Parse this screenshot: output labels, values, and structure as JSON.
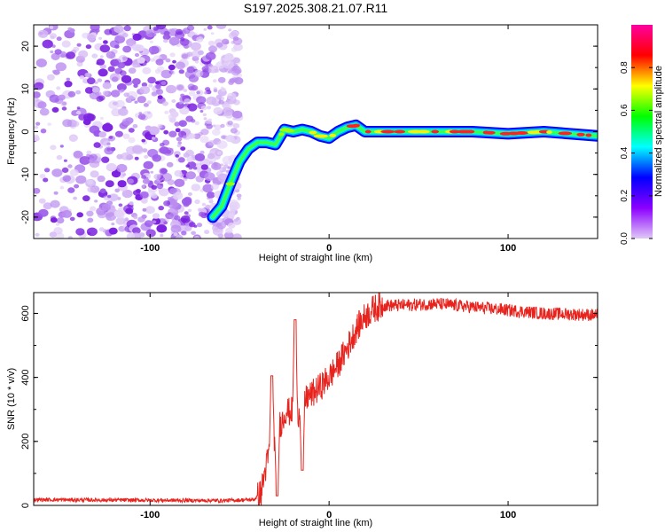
{
  "title": "S197.2025.308.21.07.R11",
  "colors": {
    "snr_line": "#e8231d",
    "scatter": "#8a2be2",
    "axis": "#000000"
  },
  "chart_data": [
    {
      "type": "heatmap",
      "name": "spectrogram",
      "xlabel": "Height of straight line (km)",
      "ylabel": "Frequency (Hz)",
      "xlim": [
        -165,
        150
      ],
      "ylim": [
        -25,
        25
      ],
      "xticks": [
        -100,
        0,
        100
      ],
      "xtick_labels": [
        "-100",
        "0",
        "100"
      ],
      "yticks": [
        -20,
        -10,
        0,
        10,
        20
      ],
      "ytick_labels": [
        "-20",
        "-10",
        "0",
        "10",
        "20"
      ],
      "track": {
        "x": [
          -65,
          -60,
          -55,
          -50,
          -45,
          -40,
          -35,
          -30,
          -25,
          -20,
          -15,
          -10,
          -5,
          0,
          5,
          10,
          15,
          20,
          30,
          40,
          60,
          80,
          100,
          120,
          150
        ],
        "y": [
          -20,
          -17.5,
          -12,
          -7,
          -4,
          -2.5,
          -2.5,
          -3,
          0.5,
          0,
          0.5,
          0,
          -1,
          -1.5,
          0,
          1,
          1.5,
          0,
          0,
          0,
          0,
          0,
          -0.5,
          0,
          -1
        ]
      },
      "noise_region_km": [
        -165,
        -50
      ],
      "colorbar": {
        "label": "Normalized spectral amplitude",
        "range": [
          0,
          1
        ],
        "ticks": [
          0.0,
          0.2,
          0.4,
          0.6,
          0.8
        ],
        "tick_labels": [
          "0.0",
          "0.2",
          "0.4",
          "0.6",
          "0.8"
        ],
        "stops": [
          "#e0c9f7",
          "#8b00ff",
          "#0000ff",
          "#00ffff",
          "#00ff00",
          "#ffff00",
          "#ff0000",
          "#ff00a0"
        ]
      }
    },
    {
      "type": "line",
      "name": "snr",
      "xlabel": "Height of straight line (km)",
      "ylabel": "SNR (10 * v/v)",
      "xlim": [
        -165,
        150
      ],
      "ylim": [
        0,
        665
      ],
      "xticks": [
        -100,
        0,
        100
      ],
      "xtick_labels": [
        "-100",
        "0",
        "100"
      ],
      "yticks": [
        0,
        200,
        400,
        600
      ],
      "ytick_labels": [
        "0",
        "200",
        "400",
        "600"
      ],
      "envelope": {
        "x": [
          -165,
          -60,
          -42,
          -38,
          -36,
          -34,
          -32,
          -30,
          -28,
          -26,
          -24,
          -22,
          -20,
          -18,
          -16,
          -14,
          -12,
          -10,
          -5,
          0,
          5,
          10,
          15,
          20,
          25,
          30,
          40,
          60,
          80,
          100,
          120,
          150
        ],
        "y": [
          18,
          15,
          18,
          40,
          100,
          150,
          200,
          220,
          250,
          265,
          300,
          290,
          300,
          280,
          300,
          320,
          340,
          345,
          370,
          400,
          440,
          490,
          550,
          590,
          615,
          625,
          625,
          630,
          620,
          610,
          600,
          595
        ]
      },
      "spikes": [
        {
          "x": -32,
          "y": 405
        },
        {
          "x": -29,
          "y": 30
        },
        {
          "x": -19,
          "y": 580
        },
        {
          "x": -15,
          "y": 110
        }
      ]
    }
  ]
}
